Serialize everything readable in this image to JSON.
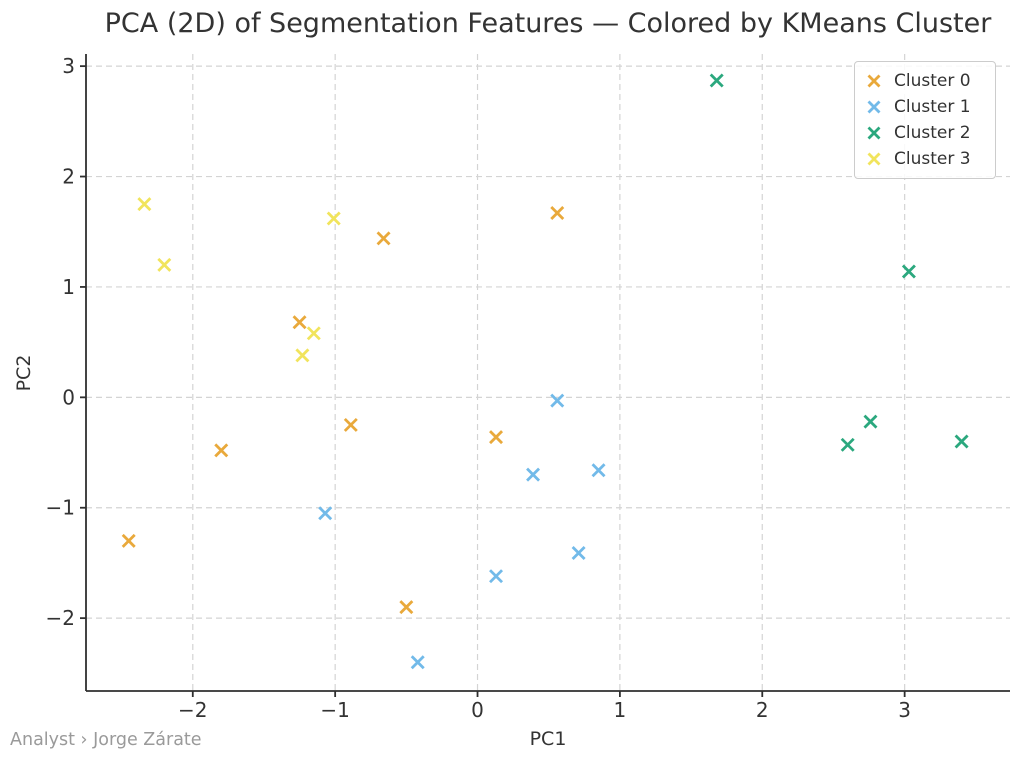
{
  "chart_data": {
    "type": "scatter",
    "title": "PCA (2D) of Segmentation Features — Colored by KMeans Cluster",
    "xlabel": "PC1",
    "ylabel": "PC2",
    "xlim": [
      -2.75,
      3.74
    ],
    "ylim": [
      -2.66,
      3.11
    ],
    "x_ticks": [
      -2,
      -1,
      0,
      1,
      2,
      3
    ],
    "y_ticks": [
      -2,
      -1,
      0,
      1,
      2,
      3
    ],
    "grid": "dashed",
    "marker": "x",
    "legend_position": "upper right",
    "series": [
      {
        "name": "Cluster 0",
        "color": "#E9A93B",
        "points": [
          [
            -2.45,
            -1.3
          ],
          [
            -1.8,
            -0.48
          ],
          [
            -1.25,
            0.68
          ],
          [
            -0.89,
            -0.25
          ],
          [
            -0.66,
            1.44
          ],
          [
            -0.5,
            -1.9
          ],
          [
            0.13,
            -0.36
          ],
          [
            0.56,
            1.67
          ]
        ]
      },
      {
        "name": "Cluster 1",
        "color": "#72BAE9",
        "points": [
          [
            -1.07,
            -1.05
          ],
          [
            -0.42,
            -2.4
          ],
          [
            0.13,
            -1.62
          ],
          [
            0.39,
            -0.7
          ],
          [
            0.56,
            -0.03
          ],
          [
            0.71,
            -1.41
          ],
          [
            0.85,
            -0.66
          ]
        ]
      },
      {
        "name": "Cluster 2",
        "color": "#2BA87E",
        "points": [
          [
            1.68,
            2.87
          ],
          [
            2.6,
            -0.43
          ],
          [
            2.76,
            -0.22
          ],
          [
            3.03,
            1.14
          ],
          [
            3.4,
            -0.4
          ]
        ]
      },
      {
        "name": "Cluster 3",
        "color": "#F1E45C",
        "points": [
          [
            -2.34,
            1.75
          ],
          [
            -2.2,
            1.2
          ],
          [
            -1.23,
            0.38
          ],
          [
            -1.15,
            0.58
          ],
          [
            -1.01,
            1.62
          ]
        ]
      }
    ]
  },
  "colors": {
    "grid": "#d4d4d4",
    "axis": "#2f2f2f",
    "text": "#333333",
    "footer_text": "#9a9a9a"
  },
  "footer": {
    "text": "Analyst › Jorge Zárate"
  }
}
